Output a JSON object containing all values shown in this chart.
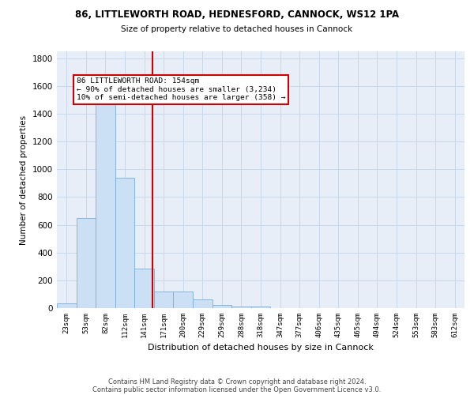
{
  "title1": "86, LITTLEWORTH ROAD, HEDNESFORD, CANNOCK, WS12 1PA",
  "title2": "Size of property relative to detached houses in Cannock",
  "xlabel": "Distribution of detached houses by size in Cannock",
  "ylabel": "Number of detached properties",
  "bar_labels": [
    "23sqm",
    "53sqm",
    "82sqm",
    "112sqm",
    "141sqm",
    "171sqm",
    "200sqm",
    "229sqm",
    "259sqm",
    "288sqm",
    "318sqm",
    "347sqm",
    "377sqm",
    "406sqm",
    "435sqm",
    "465sqm",
    "494sqm",
    "524sqm",
    "553sqm",
    "583sqm",
    "612sqm"
  ],
  "bar_values": [
    35,
    650,
    1470,
    940,
    285,
    120,
    120,
    60,
    25,
    12,
    10,
    0,
    0,
    0,
    0,
    0,
    0,
    0,
    0,
    0,
    0
  ],
  "bar_color": "#cce0f5",
  "bar_edgecolor": "#7aaddb",
  "ylim": [
    0,
    1850
  ],
  "yticks": [
    0,
    200,
    400,
    600,
    800,
    1000,
    1200,
    1400,
    1600,
    1800
  ],
  "annotation_line1": "86 LITTLEWORTH ROAD: 154sqm",
  "annotation_line2": "← 90% of detached houses are smaller (3,234)",
  "annotation_line3": "10% of semi-detached houses are larger (358) →",
  "annotation_box_color": "#ffffff",
  "annotation_border_color": "#cc0000",
  "redline_color": "#cc0000",
  "footer_line1": "Contains HM Land Registry data © Crown copyright and database right 2024.",
  "footer_line2": "Contains public sector information licensed under the Open Government Licence v3.0.",
  "grid_color": "#c8d8ec",
  "background_color": "#e8eef8"
}
